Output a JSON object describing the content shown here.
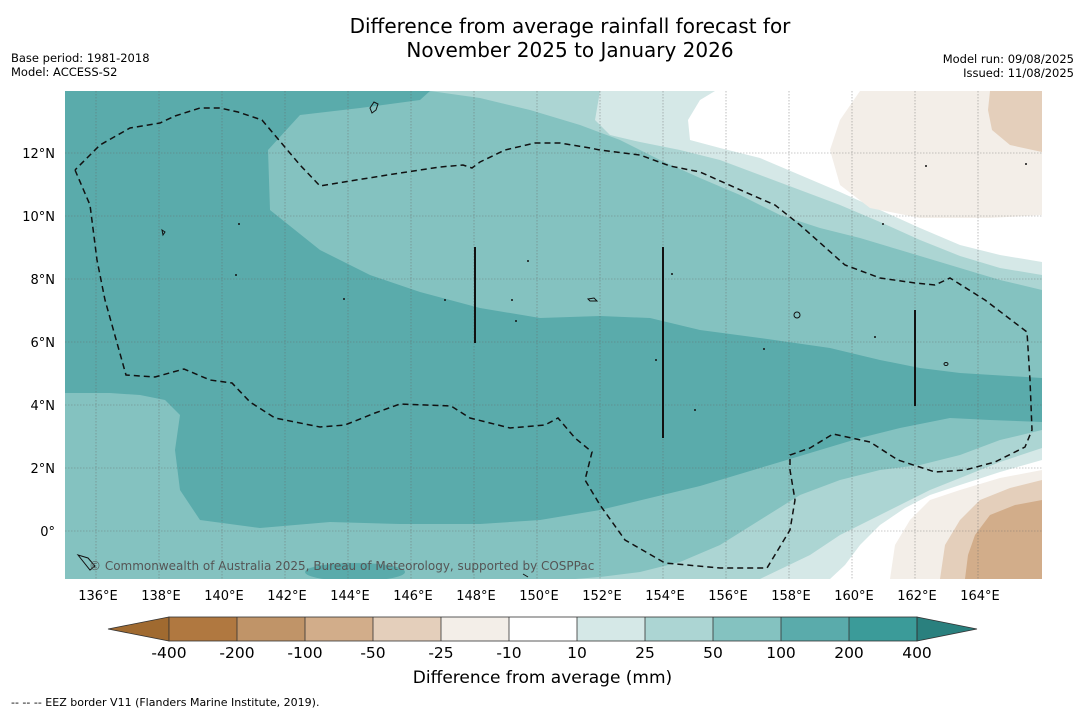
{
  "title_line1": "Difference from average rainfall forecast for",
  "title_line2": "November 2025 to January 2026",
  "meta_left": [
    "Base period: 1981-2018",
    "Model: ACCESS-S2"
  ],
  "meta_right": [
    "Model run: 09/08/2025",
    "Issued: 11/08/2025"
  ],
  "lat_ticks": [
    "12°N",
    "10°N",
    "8°N",
    "6°N",
    "4°N",
    "2°N",
    "0°"
  ],
  "lon_ticks": [
    "136°E",
    "138°E",
    "140°E",
    "142°E",
    "144°E",
    "146°E",
    "148°E",
    "150°E",
    "152°E",
    "154°E",
    "156°E",
    "158°E",
    "160°E",
    "162°E",
    "164°E"
  ],
  "copyright": "© Commonwealth of Australia 2025, Bureau of Meteorology, supported by COSPPac",
  "colorbar": {
    "title": "Difference from average (mm)",
    "labels": [
      "-400",
      "-200",
      "-100",
      "-50",
      "-25",
      "-10",
      "10",
      "25",
      "50",
      "100",
      "200",
      "400"
    ],
    "colors": [
      "#a06a30",
      "#b07840",
      "#c09468",
      "#d2ad8a",
      "#e4cfbb",
      "#f3eee8",
      "#ffffff",
      "#d5e8e7",
      "#acd5d3",
      "#84c2c0",
      "#5aabab",
      "#3b9b99",
      "#2a807e"
    ]
  },
  "footer": "--  --  -- EEZ border V11 (Flanders Marine Institute, 2019)."
}
